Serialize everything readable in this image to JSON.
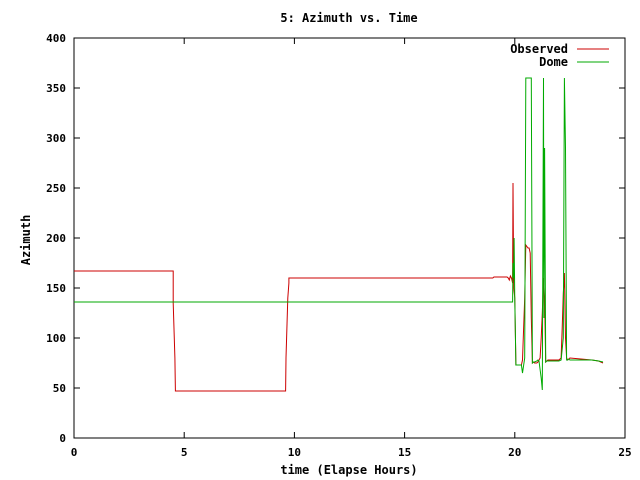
{
  "chart_data": {
    "type": "line",
    "title": "5: Azimuth vs. Time",
    "xlabel": "time (Elapse Hours)",
    "ylabel": "Azimuth",
    "xlim": [
      0,
      25
    ],
    "ylim": [
      0,
      400
    ],
    "xticks": [
      0,
      5,
      10,
      15,
      20,
      25
    ],
    "yticks": [
      0,
      50,
      100,
      150,
      200,
      250,
      300,
      350,
      400
    ],
    "grid": false,
    "legend_position": "top-right",
    "series": [
      {
        "name": "Observed",
        "color": "#cc0000",
        "x": [
          0,
          4.5,
          4.5,
          4.58,
          4.6,
          4.6,
          9.6,
          9.62,
          9.7,
          9.75,
          9.75,
          19.0,
          19.05,
          19.6,
          19.65,
          19.7,
          19.75,
          19.8,
          19.85,
          19.9,
          19.92,
          19.95,
          20.0,
          20.05,
          20.3,
          20.35,
          20.45,
          20.5,
          20.6,
          20.65,
          20.7,
          20.75,
          20.8,
          20.85,
          20.9,
          21.0,
          21.05,
          21.1,
          21.15,
          21.2,
          21.25,
          21.3,
          21.35,
          21.4,
          21.45,
          21.5,
          22.0,
          22.1,
          22.15,
          22.2,
          22.25,
          22.3,
          22.35,
          22.4,
          22.45,
          22.5,
          23.0,
          23.5,
          23.8,
          24.0
        ],
        "y": [
          167,
          167,
          135,
          80,
          47,
          47,
          47,
          80,
          140,
          155,
          160,
          160,
          161,
          161,
          161,
          160,
          158,
          162,
          160,
          155,
          255,
          150,
          140,
          73,
          73,
          78,
          140,
          193,
          190,
          190,
          185,
          120,
          75,
          76,
          75,
          75,
          76,
          78,
          80,
          100,
          125,
          160,
          140,
          76,
          77,
          78,
          78,
          80,
          110,
          145,
          165,
          100,
          80,
          78,
          79,
          80,
          79,
          78,
          77,
          75
        ]
      },
      {
        "name": "Dome",
        "color": "#00aa00",
        "x": [
          0,
          19.9,
          19.92,
          19.95,
          19.97,
          20.0,
          20.05,
          20.3,
          20.35,
          20.45,
          20.5,
          20.55,
          20.6,
          20.65,
          20.75,
          20.8,
          20.85,
          20.9,
          21.0,
          21.05,
          21.1,
          21.2,
          21.25,
          21.3,
          21.32,
          21.35,
          21.4,
          21.45,
          21.5,
          22.0,
          22.1,
          22.2,
          22.25,
          22.3,
          22.35,
          22.4,
          22.45,
          22.5,
          23.0,
          23.5,
          23.8,
          24.0
        ],
        "y": [
          136,
          136,
          175,
          160,
          200,
          137,
          73,
          73,
          65,
          80,
          360,
          360,
          360,
          360,
          360,
          75,
          76,
          76,
          77,
          78,
          77,
          60,
          48,
          360,
          120,
          290,
          76,
          77,
          77,
          77,
          78,
          100,
          360,
          290,
          78,
          78,
          79,
          78,
          78,
          78,
          77,
          76
        ]
      }
    ]
  }
}
